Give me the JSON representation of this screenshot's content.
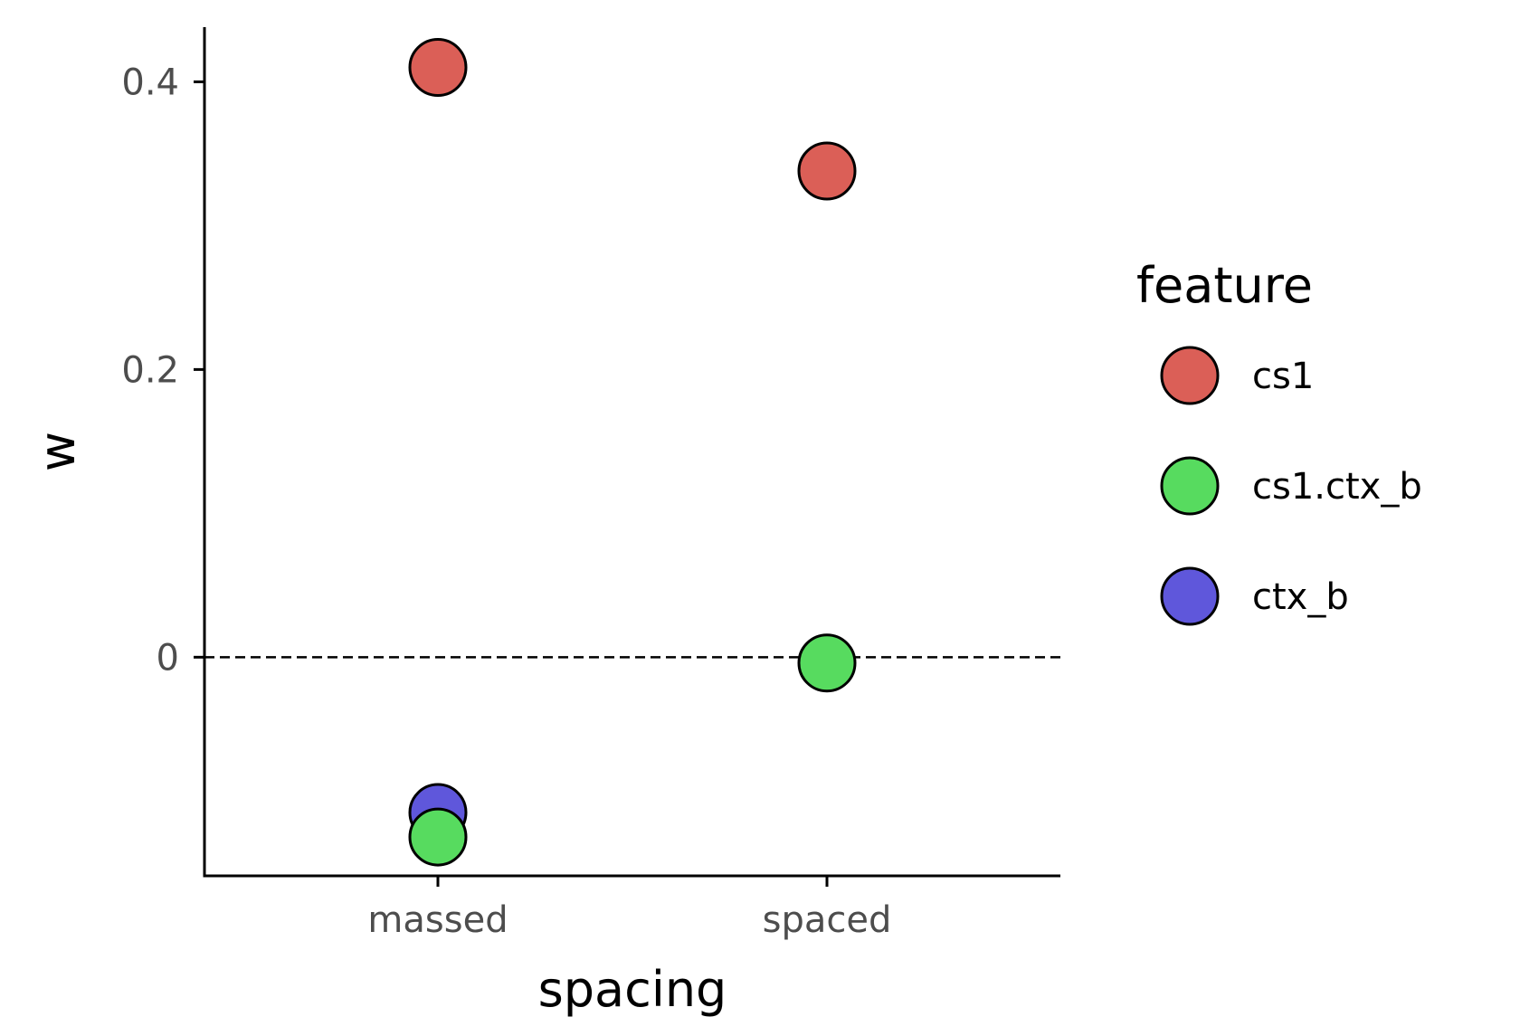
{
  "chart_data": {
    "type": "scatter",
    "xlabel": "spacing",
    "ylabel": "w",
    "categories": [
      "massed",
      "spaced"
    ],
    "y_ticks": [
      0,
      0.2,
      0.4
    ],
    "y_tick_labels": [
      "0",
      "0.2",
      "0.4"
    ],
    "ylim": [
      -0.152,
      0.438
    ],
    "reference_line": {
      "y": 0,
      "style": "dashed",
      "color": "#000000"
    },
    "grid": false,
    "legend": {
      "title": "feature",
      "position": "right",
      "entries": [
        "cs1",
        "cs1.ctx_b",
        "ctx_b"
      ]
    },
    "series": [
      {
        "name": "cs1",
        "color": "#DB5F57",
        "values": [
          0.41,
          0.338
        ]
      },
      {
        "name": "cs1.ctx_b",
        "color": "#57DB5F",
        "values": [
          -0.125,
          -0.004
        ]
      },
      {
        "name": "ctx_b",
        "color": "#5F57DB",
        "values": [
          -0.108,
          null
        ]
      }
    ],
    "draw_order": [
      "ctx_b",
      "cs1.ctx_b",
      "cs1"
    ]
  }
}
